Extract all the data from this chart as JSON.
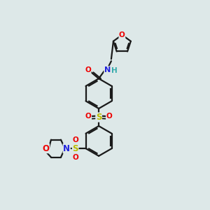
{
  "bg_color": "#dde8e8",
  "bond_color": "#1a1a1a",
  "atom_colors": {
    "O": "#ee0000",
    "N": "#2222dd",
    "S": "#bbbb00",
    "H": "#33aaaa",
    "C": "#1a1a1a"
  },
  "figsize": [
    3.0,
    3.0
  ],
  "dpi": 100,
  "xlim": [
    0,
    10
  ],
  "ylim": [
    0,
    10
  ],
  "ring_r": 0.72,
  "lw": 1.6
}
